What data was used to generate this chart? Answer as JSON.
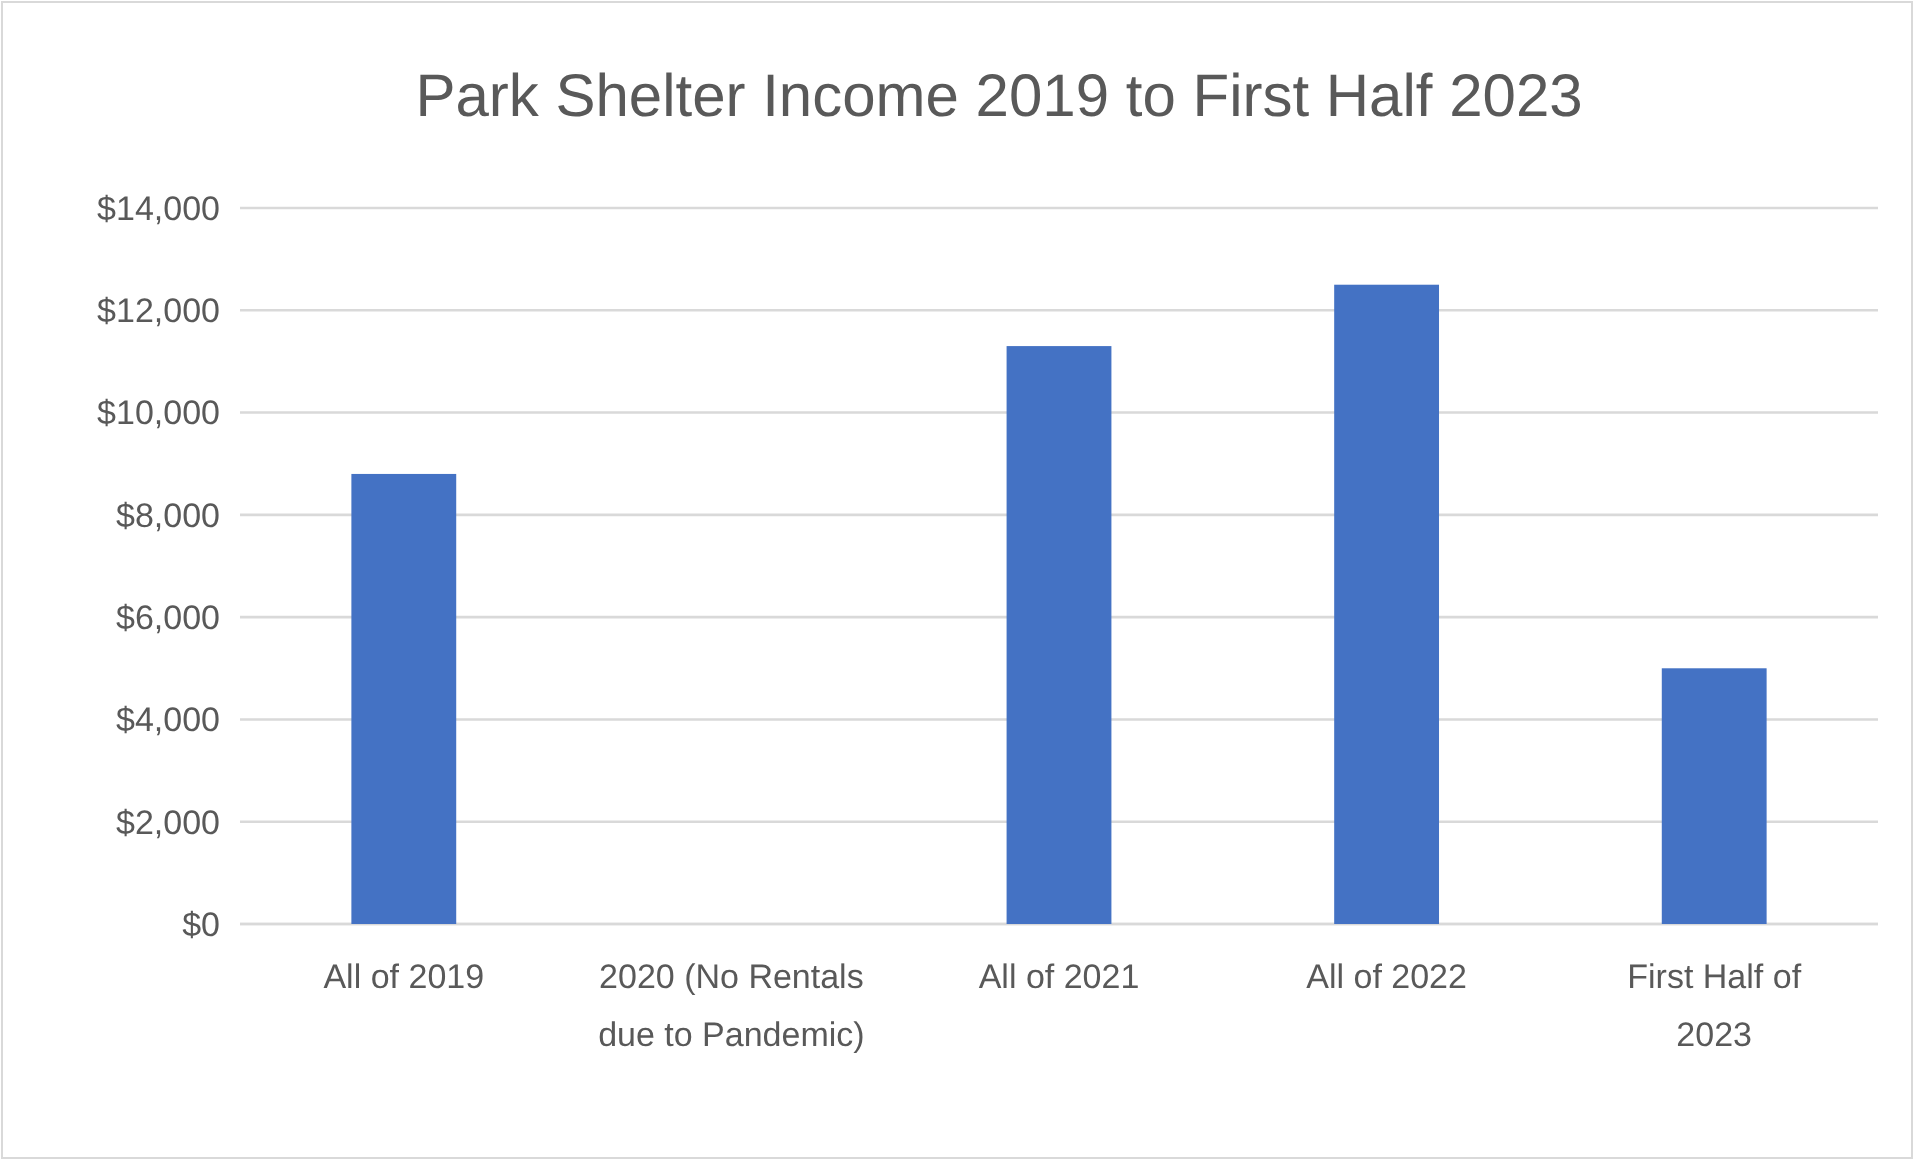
{
  "chart_data": {
    "type": "bar",
    "title": "Park Shelter Income 2019 to First Half 2023",
    "categories": [
      "All of 2019",
      "2020 (No Rentals due to Pandemic)",
      "All of 2021",
      "All of 2022",
      "First Half of 2023"
    ],
    "values": [
      8800,
      0,
      11300,
      12500,
      5000
    ],
    "color": "#4472c4",
    "ylim": [
      0,
      14000
    ],
    "yticks": [
      {
        "value": 0,
        "label": "$0"
      },
      {
        "value": 2000,
        "label": "$2,000"
      },
      {
        "value": 4000,
        "label": "$4,000"
      },
      {
        "value": 6000,
        "label": "$6,000"
      },
      {
        "value": 8000,
        "label": "$8,000"
      },
      {
        "value": 10000,
        "label": "$10,000"
      },
      {
        "value": 12000,
        "label": "$12,000"
      },
      {
        "value": 14000,
        "label": "$14,000"
      }
    ],
    "grid": "y"
  }
}
